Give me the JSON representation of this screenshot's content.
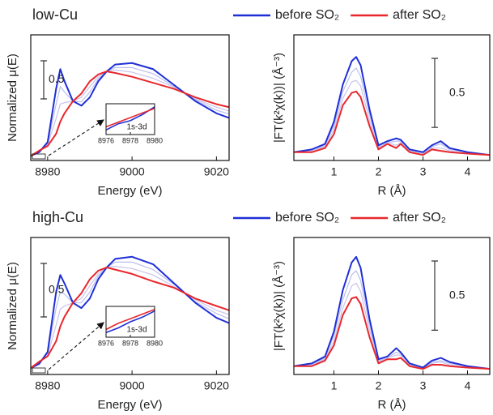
{
  "chart_data": [
    {
      "type": "line",
      "title": "low-Cu",
      "x_label": "Energy (eV)",
      "y_label": "Normalized μ(E)",
      "x": [
        8976,
        8978,
        8980,
        8982,
        8983,
        8984,
        8986,
        8988,
        8990,
        8992,
        8994,
        8996,
        9000,
        9005,
        9010,
        9015,
        9020,
        9023
      ],
      "xlim": [
        8976,
        9023
      ],
      "xticks": [
        8980,
        9000,
        9020
      ],
      "ylim": [
        -0.05,
        1.6
      ],
      "scale_bar": 0.5,
      "legend": false,
      "series": [
        {
          "color": "#b9bff0",
          "values": [
            0.01,
            0.07,
            0.17,
            0.69,
            0.92,
            0.85,
            0.73,
            0.72,
            0.85,
            1.02,
            1.12,
            1.17,
            1.17,
            1.09,
            0.92,
            0.75,
            0.61,
            0.56
          ]
        },
        {
          "color": "#c9c4ea",
          "values": [
            0.01,
            0.07,
            0.16,
            0.5,
            0.69,
            0.71,
            0.73,
            0.78,
            0.92,
            1.05,
            1.12,
            1.14,
            1.11,
            1.03,
            0.91,
            0.76,
            0.65,
            0.6
          ]
        },
        {
          "color": "#1f2fd6",
          "values": [
            0.01,
            0.06,
            0.19,
            0.89,
            1.15,
            0.99,
            0.73,
            0.67,
            0.78,
            0.99,
            1.12,
            1.21,
            1.23,
            1.15,
            0.94,
            0.73,
            0.57,
            0.51
          ]
        },
        {
          "color": "#e8282d",
          "values": [
            0.01,
            0.08,
            0.14,
            0.3,
            0.46,
            0.57,
            0.73,
            0.83,
            0.99,
            1.08,
            1.12,
            1.1,
            1.05,
            0.97,
            0.89,
            0.78,
            0.69,
            0.65
          ]
        }
      ],
      "inset": {
        "annotation": "1s-3d",
        "x": [
          8976,
          8977,
          8978,
          8979,
          8980
        ],
        "xlim": [
          8976,
          8980
        ],
        "xticks": [
          8976,
          8978,
          8980
        ],
        "ylim": [
          0,
          0.2
        ],
        "series": [
          {
            "color": "#1f2fd6",
            "values": [
              0.03,
              0.07,
              0.09,
              0.13,
              0.18
            ]
          },
          {
            "color": "#e8282d",
            "values": [
              0.05,
              0.08,
              0.11,
              0.14,
              0.17
            ]
          }
        ]
      }
    },
    {
      "type": "line",
      "x_label": "R (Å)",
      "y_label": "|FT(k²χ(k))| (Å⁻³)",
      "x": [
        0.1,
        0.5,
        0.8,
        1.0,
        1.2,
        1.4,
        1.5,
        1.6,
        1.8,
        2.0,
        2.2,
        2.4,
        2.5,
        2.7,
        3.0,
        3.2,
        3.4,
        3.6,
        4.0,
        4.5
      ],
      "xlim": [
        0.1,
        4.5
      ],
      "xticks": [
        1,
        2,
        3,
        4
      ],
      "ylim": [
        -0.03,
        0.88
      ],
      "scale_bar": 0.5,
      "legend": true,
      "series": [
        {
          "color": "#b9bff0",
          "values": [
            0.03,
            0.04,
            0.08,
            0.22,
            0.47,
            0.61,
            0.64,
            0.58,
            0.3,
            0.07,
            0.1,
            0.11,
            0.11,
            0.04,
            0.02,
            0.07,
            0.09,
            0.05,
            0.03,
            0.01
          ]
        },
        {
          "color": "#c9c4ea",
          "values": [
            0.03,
            0.04,
            0.07,
            0.19,
            0.42,
            0.54,
            0.55,
            0.51,
            0.26,
            0.06,
            0.1,
            0.08,
            0.1,
            0.04,
            0.02,
            0.06,
            0.06,
            0.04,
            0.02,
            0.01
          ]
        },
        {
          "name": "before SO₂",
          "color": "#1f2fd6",
          "values": [
            0.03,
            0.05,
            0.09,
            0.25,
            0.52,
            0.69,
            0.72,
            0.66,
            0.34,
            0.08,
            0.11,
            0.13,
            0.12,
            0.05,
            0.03,
            0.08,
            0.11,
            0.06,
            0.03,
            0.01
          ]
        },
        {
          "name": "after SO₂",
          "color": "#e8282d",
          "values": [
            0.03,
            0.03,
            0.06,
            0.16,
            0.37,
            0.46,
            0.47,
            0.43,
            0.22,
            0.05,
            0.09,
            0.06,
            0.09,
            0.03,
            0.01,
            0.05,
            0.04,
            0.03,
            0.02,
            0.01
          ]
        }
      ]
    },
    {
      "type": "line",
      "title": "high-Cu",
      "x_label": "Energy (eV)",
      "y_label": "Normalized μ(E)",
      "x": [
        8976,
        8978,
        8980,
        8982,
        8983,
        8984,
        8986,
        8988,
        8990,
        8992,
        8994,
        8996,
        9000,
        9005,
        9010,
        9015,
        9020,
        9023
      ],
      "xlim": [
        8976,
        9023
      ],
      "xticks": [
        8980,
        9000,
        9020
      ],
      "ylim": [
        -0.05,
        1.23
      ],
      "scale_bar": 0.5,
      "legend": false,
      "series": [
        {
          "color": "#b9bff0",
          "values": [
            0.01,
            0.06,
            0.15,
            0.57,
            0.72,
            0.7,
            0.62,
            0.62,
            0.72,
            0.87,
            0.95,
            1.0,
            1.0,
            0.93,
            0.79,
            0.63,
            0.52,
            0.47
          ]
        },
        {
          "color": "#c9c4ea",
          "values": [
            0.01,
            0.06,
            0.13,
            0.41,
            0.56,
            0.59,
            0.62,
            0.66,
            0.78,
            0.89,
            0.95,
            0.96,
            0.94,
            0.88,
            0.77,
            0.65,
            0.55,
            0.51
          ]
        },
        {
          "color": "#1f2fd6",
          "values": [
            0.01,
            0.05,
            0.16,
            0.72,
            0.88,
            0.8,
            0.62,
            0.57,
            0.66,
            0.84,
            0.95,
            1.03,
            1.05,
            0.98,
            0.8,
            0.62,
            0.48,
            0.43
          ]
        },
        {
          "color": "#e8282d",
          "values": [
            0.01,
            0.07,
            0.12,
            0.26,
            0.4,
            0.49,
            0.62,
            0.71,
            0.84,
            0.92,
            0.95,
            0.93,
            0.89,
            0.82,
            0.76,
            0.66,
            0.59,
            0.55
          ]
        }
      ],
      "inset": {
        "annotation": "1s-3d",
        "x": [
          8976,
          8977,
          8978,
          8979,
          8980
        ],
        "xlim": [
          8976,
          8980
        ],
        "xticks": [
          8976,
          8978,
          8980
        ],
        "ylim": [
          0,
          0.2
        ],
        "series": [
          {
            "color": "#1f2fd6",
            "values": [
              0.03,
              0.06,
              0.1,
              0.13,
              0.17
            ]
          },
          {
            "color": "#e8282d",
            "values": [
              0.05,
              0.09,
              0.12,
              0.15,
              0.18
            ]
          }
        ]
      }
    },
    {
      "type": "line",
      "x_label": "R (Å)",
      "y_label": "|FT(k²χ(k))| (Å⁻³)",
      "x": [
        0.1,
        0.5,
        0.8,
        1.0,
        1.2,
        1.4,
        1.5,
        1.6,
        1.8,
        2.0,
        2.2,
        2.4,
        2.5,
        2.7,
        3.0,
        3.2,
        3.4,
        3.6,
        4.0,
        4.5
      ],
      "xlim": [
        0.1,
        4.5
      ],
      "xticks": [
        1,
        2,
        3,
        4
      ],
      "ylim": [
        -0.03,
        0.96
      ],
      "scale_bar": 0.5,
      "legend": true,
      "series": [
        {
          "color": "#b9bff0",
          "values": [
            0.03,
            0.04,
            0.09,
            0.25,
            0.51,
            0.69,
            0.72,
            0.65,
            0.33,
            0.07,
            0.09,
            0.13,
            0.12,
            0.04,
            0.02,
            0.06,
            0.07,
            0.05,
            0.03,
            0.01
          ]
        },
        {
          "color": "#c9c4ea",
          "values": [
            0.03,
            0.04,
            0.08,
            0.21,
            0.45,
            0.61,
            0.63,
            0.57,
            0.29,
            0.06,
            0.09,
            0.11,
            0.11,
            0.04,
            0.02,
            0.05,
            0.06,
            0.04,
            0.02,
            0.01
          ]
        },
        {
          "name": "before SO₂",
          "color": "#1f2fd6",
          "values": [
            0.03,
            0.05,
            0.1,
            0.28,
            0.58,
            0.78,
            0.82,
            0.74,
            0.37,
            0.08,
            0.1,
            0.16,
            0.13,
            0.05,
            0.02,
            0.07,
            0.09,
            0.06,
            0.03,
            0.01
          ]
        },
        {
          "name": "after SO₂",
          "color": "#e8282d",
          "values": [
            0.03,
            0.03,
            0.07,
            0.18,
            0.4,
            0.52,
            0.53,
            0.48,
            0.24,
            0.05,
            0.08,
            0.08,
            0.09,
            0.03,
            0.01,
            0.04,
            0.04,
            0.03,
            0.02,
            0.01
          ]
        }
      ]
    }
  ]
}
